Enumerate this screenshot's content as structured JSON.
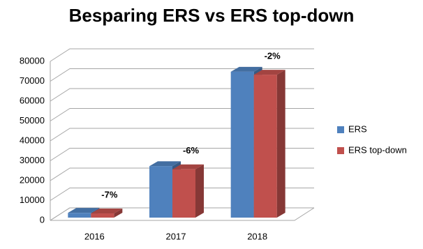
{
  "chart_data": {
    "type": "bar3d",
    "title": "Besparing ERS vs ERS top-down",
    "categories": [
      "2016",
      "2017",
      "2018"
    ],
    "series": [
      {
        "name": "ERS",
        "color": "#4f81bd",
        "values": [
          4500,
          28000,
          75500
        ]
      },
      {
        "name": "ERS top-down",
        "color": "#c0504d",
        "values": [
          4200,
          26400,
          74000
        ]
      }
    ],
    "annotations": [
      "-7%",
      "-6%",
      "-2%"
    ],
    "ylim": [
      0,
      80000
    ],
    "yticks": [
      0,
      10000,
      20000,
      30000,
      40000,
      50000,
      60000,
      70000,
      80000
    ],
    "grid": true,
    "legend": "right"
  }
}
